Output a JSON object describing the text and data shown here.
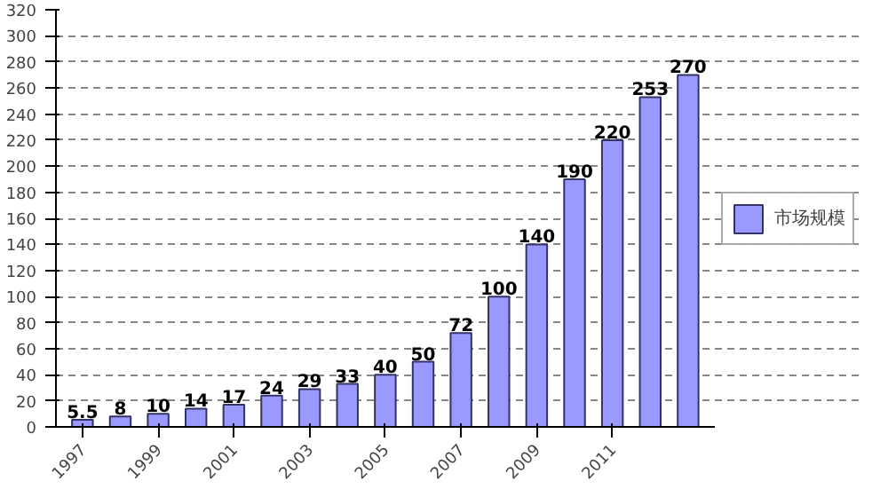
{
  "chart_data": {
    "type": "bar",
    "categories": [
      "1997",
      null,
      "1999",
      null,
      "2001",
      null,
      "2003",
      null,
      "2005",
      null,
      "2007",
      null,
      "2009",
      null,
      "2011",
      null,
      null
    ],
    "series": [
      {
        "name": "市场规模",
        "color": "#9999ff",
        "values": [
          5.5,
          8,
          10,
          14,
          17,
          24,
          29,
          33,
          40,
          50,
          72,
          100,
          140,
          190,
          220,
          253,
          270
        ]
      }
    ],
    "ylim": [
      0,
      320
    ],
    "yticks": [
      0,
      20,
      40,
      60,
      80,
      100,
      120,
      140,
      160,
      180,
      200,
      220,
      240,
      260,
      280,
      300,
      320
    ],
    "grid": "y",
    "legend": "right",
    "data_labels": true
  }
}
